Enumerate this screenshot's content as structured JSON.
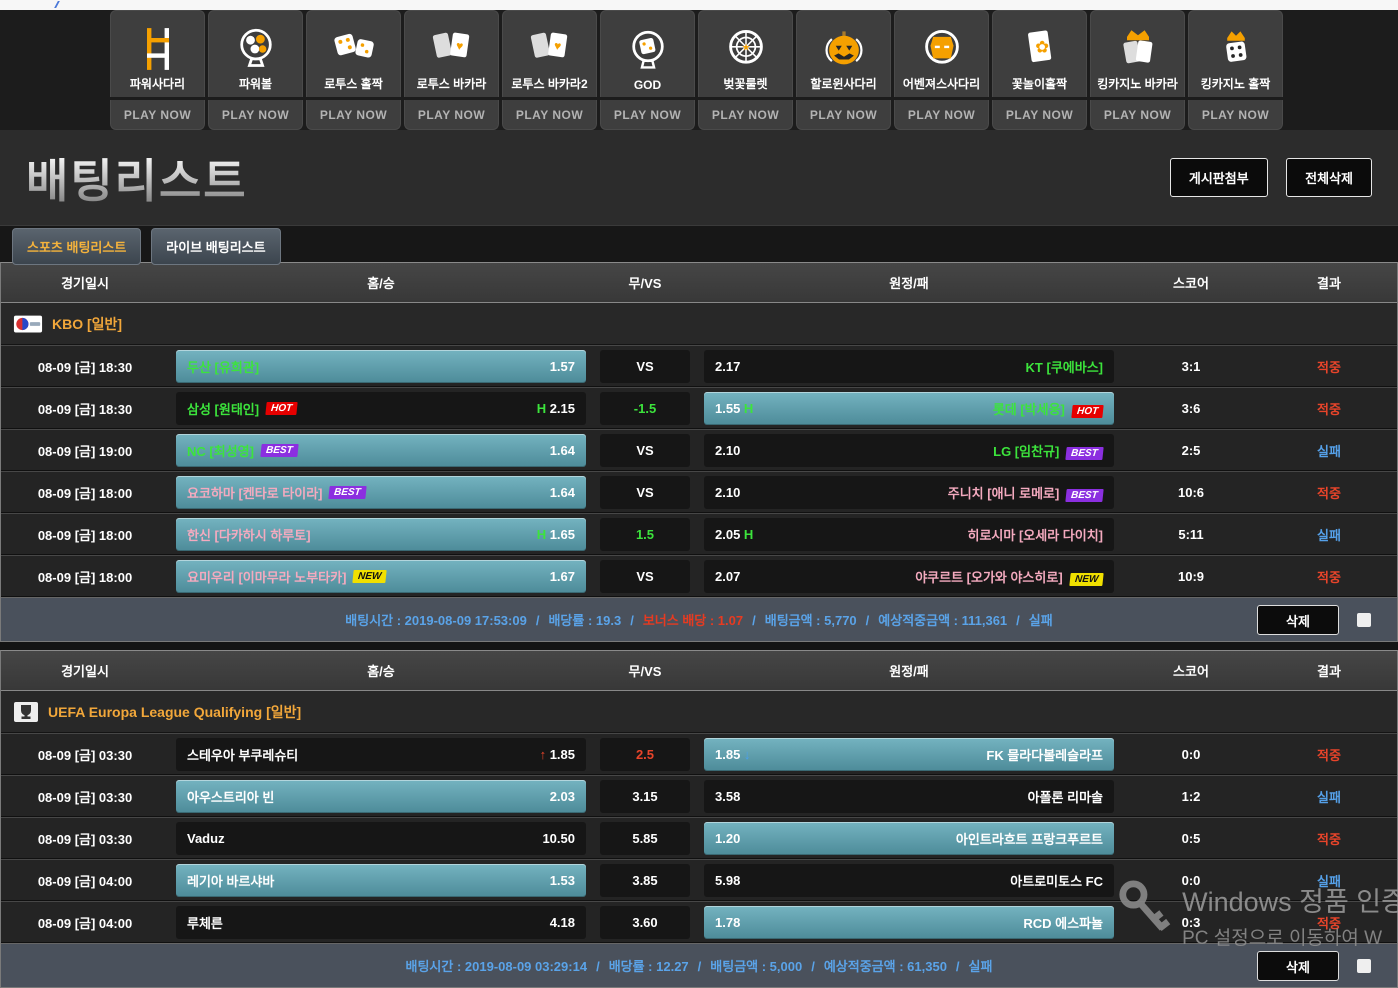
{
  "games_bar": {
    "play_now_label": "PLAY NOW",
    "games": [
      {
        "name": "파워사다리",
        "icon": "ladder-icon"
      },
      {
        "name": "파워볼",
        "icon": "powerball-icon"
      },
      {
        "name": "로투스 홀짝",
        "icon": "dice-pair-icon"
      },
      {
        "name": "로투스 바카라",
        "icon": "cards-heart-icon"
      },
      {
        "name": "로투스 바카라2",
        "icon": "cards-heart-icon"
      },
      {
        "name": "GOD",
        "icon": "god-ball-icon"
      },
      {
        "name": "벚꽃룰렛",
        "icon": "roulette-icon"
      },
      {
        "name": "할로윈사다리",
        "icon": "pumpkin-icon"
      },
      {
        "name": "어벤져스사다리",
        "icon": "ironman-icon"
      },
      {
        "name": "꽃놀이홀짝",
        "icon": "flower-card-icon"
      },
      {
        "name": "킹카지노 바카라",
        "icon": "crown-cards-icon"
      },
      {
        "name": "킹카지노 홀짝",
        "icon": "crown-dice-icon"
      }
    ]
  },
  "header": {
    "title": "배팅리스트",
    "buttons": [
      "게시판첨부",
      "전체삭제"
    ]
  },
  "tabs": [
    {
      "label": "스포츠 배팅리스트",
      "active": true
    },
    {
      "label": "라이브 배팅리스트",
      "active": false
    }
  ],
  "columns": [
    "경기일시",
    "홈/승",
    "무/VS",
    "원정/패",
    "스코어",
    "결과"
  ],
  "colors": {
    "accent_orange": "#f2a73a",
    "selected_teal_top": "#74b3c0",
    "selected_teal_bottom": "#4d8b99",
    "team_green": "#3ce43c",
    "team_pink": "#f4aabf",
    "hit_red": "#e8442a",
    "fail_blue": "#55a0e8",
    "footer_bg": "#4a515c",
    "footer_blue": "#5aa3e8",
    "bonus_red": "#e83a20"
  },
  "tables": [
    {
      "league": {
        "name": "KBO [일반]",
        "icon": "kbo-logo-icon"
      },
      "rows": [
        {
          "date": "08-09 [금] 18:30",
          "home": {
            "team": "두산 [유희관]",
            "color": "green",
            "badge": null,
            "pre": null,
            "odds": "1.57",
            "suf": null,
            "sel": true
          },
          "draw": {
            "text": "VS",
            "cls": "w"
          },
          "away": {
            "pre": null,
            "odds": "2.17",
            "suf": null,
            "team": "KT [쿠에바스]",
            "color": "green",
            "badge": null,
            "sel": false
          },
          "score": "3:1",
          "result": "적중"
        },
        {
          "date": "08-09 [금] 18:30",
          "home": {
            "team": "삼성 [원태인]",
            "color": "green",
            "badge": "HOT",
            "pre": {
              "t": "H",
              "c": "g"
            },
            "odds": "2.15",
            "suf": null,
            "sel": false
          },
          "draw": {
            "text": "-1.5",
            "cls": "g"
          },
          "away": {
            "pre": null,
            "odds": "1.55",
            "suf": {
              "t": "H",
              "c": "g"
            },
            "team": "롯데 [박세웅]",
            "color": "green",
            "badge": "HOT",
            "sel": true
          },
          "score": "3:6",
          "result": "적중"
        },
        {
          "date": "08-09 [금] 19:00",
          "home": {
            "team": "NC [최성영]",
            "color": "green",
            "badge": "BEST",
            "pre": null,
            "odds": "1.64",
            "suf": null,
            "sel": true
          },
          "draw": {
            "text": "VS",
            "cls": "w"
          },
          "away": {
            "pre": null,
            "odds": "2.10",
            "suf": null,
            "team": "LG [임찬규]",
            "color": "green",
            "badge": "BEST",
            "sel": false
          },
          "score": "2:5",
          "result": "실패"
        },
        {
          "date": "08-09 [금] 18:00",
          "home": {
            "team": "요코하마 [켄타로 타이라]",
            "color": "pink",
            "badge": "BEST",
            "pre": null,
            "odds": "1.64",
            "suf": null,
            "sel": true
          },
          "draw": {
            "text": "VS",
            "cls": "w"
          },
          "away": {
            "pre": null,
            "odds": "2.10",
            "suf": null,
            "team": "주니치 [애니 로메로]",
            "color": "pink",
            "badge": "BEST",
            "sel": false
          },
          "score": "10:6",
          "result": "적중"
        },
        {
          "date": "08-09 [금] 18:00",
          "home": {
            "team": "한신 [다카하시 하루토]",
            "color": "pink",
            "badge": null,
            "pre": {
              "t": "H",
              "c": "g"
            },
            "odds": "1.65",
            "suf": null,
            "sel": true
          },
          "draw": {
            "text": "1.5",
            "cls": "g"
          },
          "away": {
            "pre": null,
            "odds": "2.05",
            "suf": {
              "t": "H",
              "c": "g"
            },
            "team": "히로시마 [오세라 다이치]",
            "color": "pink",
            "badge": null,
            "sel": false
          },
          "score": "5:11",
          "result": "실패"
        },
        {
          "date": "08-09 [금] 18:00",
          "home": {
            "team": "요미우리 [이마무라 노부타카]",
            "color": "pink",
            "badge": "NEW",
            "pre": null,
            "odds": "1.67",
            "suf": null,
            "sel": true
          },
          "draw": {
            "text": "VS",
            "cls": "w"
          },
          "away": {
            "pre": null,
            "odds": "2.07",
            "suf": null,
            "team": "야쿠르트 [오가와 야스히로]",
            "color": "pink",
            "badge": "NEW",
            "sel": false
          },
          "score": "10:9",
          "result": "적중"
        }
      ],
      "footer": {
        "segments": [
          {
            "text": "배팅시간 : 2019-08-09 17:53:09",
            "red": false
          },
          {
            "text": "배당률 : 19.3",
            "red": false
          },
          {
            "text": "보너스 배당 : 1.07",
            "red": true
          },
          {
            "text": "배팅금액 : 5,770",
            "red": false
          },
          {
            "text": "예상적중금액 : 111,361",
            "red": false
          },
          {
            "text": "실패",
            "red": false
          }
        ],
        "delete_label": "삭제"
      }
    },
    {
      "league": {
        "name": "UEFA Europa League Qualifying [일반]",
        "icon": "trophy-icon"
      },
      "rows": [
        {
          "date": "08-09 [금] 03:30",
          "home": {
            "team": "스테우아 부쿠레슈티",
            "color": "white",
            "badge": null,
            "pre": {
              "t": "↑",
              "c": "r"
            },
            "odds": "1.85",
            "suf": null,
            "sel": false
          },
          "draw": {
            "text": "2.5",
            "cls": "r"
          },
          "away": {
            "pre": null,
            "odds": "1.85",
            "suf": {
              "t": "↓",
              "c": "b"
            },
            "team": "FK 믈라다볼레슬라프",
            "color": "white",
            "badge": null,
            "sel": true
          },
          "score": "0:0",
          "result": "적중"
        },
        {
          "date": "08-09 [금] 03:30",
          "home": {
            "team": "아우스트리아 빈",
            "color": "white",
            "badge": null,
            "pre": null,
            "odds": "2.03",
            "suf": null,
            "sel": true
          },
          "draw": {
            "text": "3.15",
            "cls": "w"
          },
          "away": {
            "pre": null,
            "odds": "3.58",
            "suf": null,
            "team": "아폴론 리마솔",
            "color": "white",
            "badge": null,
            "sel": false
          },
          "score": "1:2",
          "result": "실패"
        },
        {
          "date": "08-09 [금] 03:30",
          "home": {
            "team": "Vaduz",
            "color": "white",
            "badge": null,
            "pre": null,
            "odds": "10.50",
            "suf": null,
            "sel": false
          },
          "draw": {
            "text": "5.85",
            "cls": "w"
          },
          "away": {
            "pre": null,
            "odds": "1.20",
            "suf": null,
            "team": "아인트라흐트 프랑크푸르트",
            "color": "white",
            "badge": null,
            "sel": true
          },
          "score": "0:5",
          "result": "적중"
        },
        {
          "date": "08-09 [금] 04:00",
          "home": {
            "team": "레기아 바르샤바",
            "color": "white",
            "badge": null,
            "pre": null,
            "odds": "1.53",
            "suf": null,
            "sel": true
          },
          "draw": {
            "text": "3.85",
            "cls": "w"
          },
          "away": {
            "pre": null,
            "odds": "5.98",
            "suf": null,
            "team": "아트로미토스 FC",
            "color": "white",
            "badge": null,
            "sel": false
          },
          "score": "0:0",
          "result": "실패"
        },
        {
          "date": "08-09 [금] 04:00",
          "home": {
            "team": "루체른",
            "color": "white",
            "badge": null,
            "pre": null,
            "odds": "4.18",
            "suf": null,
            "sel": false
          },
          "draw": {
            "text": "3.60",
            "cls": "w"
          },
          "away": {
            "pre": null,
            "odds": "1.78",
            "suf": null,
            "team": "RCD 에스파뇰",
            "color": "white",
            "badge": null,
            "sel": true
          },
          "score": "0:3",
          "result": "적중"
        }
      ],
      "footer": {
        "segments": [
          {
            "text": "배팅시간 : 2019-08-09 03:29:14",
            "red": false
          },
          {
            "text": "배당률 : 12.27",
            "red": false
          },
          {
            "text": "배팅금액 : 5,000",
            "red": false
          },
          {
            "text": "예상적중금액 : 61,350",
            "red": false
          },
          {
            "text": "실패",
            "red": false
          }
        ],
        "delete_label": "삭제"
      }
    }
  ],
  "watermark": {
    "line1": "Windows 정품 인증",
    "line2": "PC 설정으로 이동하여 W"
  }
}
